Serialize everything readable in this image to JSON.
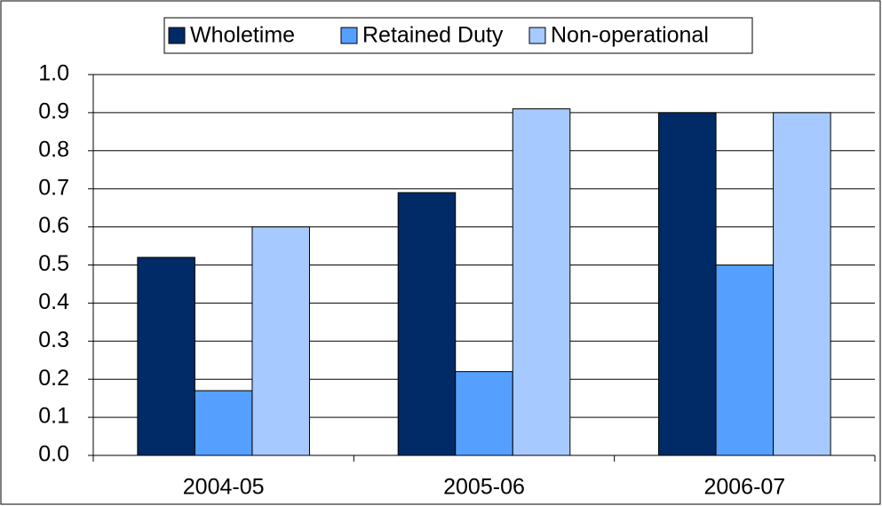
{
  "chart_data": {
    "type": "bar",
    "categories": [
      "2004-05",
      "2005-06",
      "2006-07"
    ],
    "series": [
      {
        "name": "Wholetime",
        "color": "#002b66",
        "values": [
          0.52,
          0.69,
          0.9
        ]
      },
      {
        "name": "Retained Duty",
        "color": "#55a0ff",
        "values": [
          0.17,
          0.22,
          0.5
        ]
      },
      {
        "name": "Non-operational",
        "color": "#a6caff",
        "values": [
          0.6,
          0.91,
          0.9
        ]
      }
    ],
    "ylim": [
      0,
      1
    ],
    "yticks": [
      {
        "value": 0,
        "label": "0.0"
      },
      0.1,
      0.2,
      0.3,
      0.4,
      0.5,
      0.6,
      0.7,
      0.8,
      0.9,
      {
        "value": 1,
        "label": "1.0"
      }
    ],
    "grid": true,
    "legend": "top"
  }
}
